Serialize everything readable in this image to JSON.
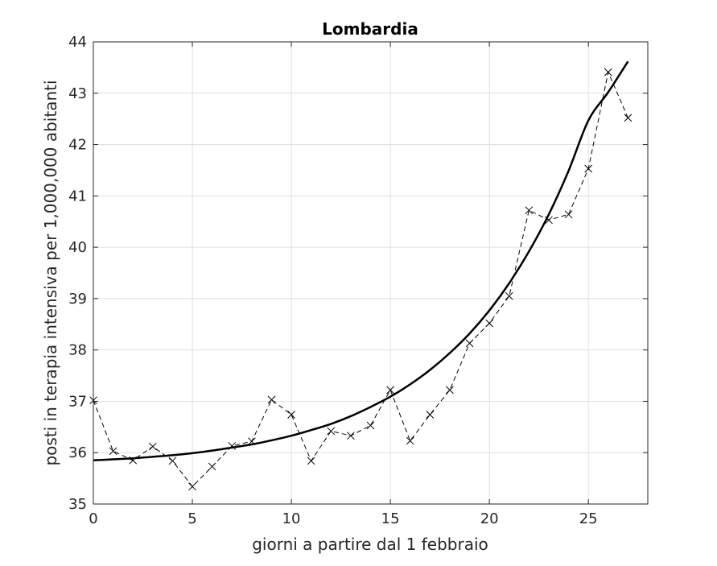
{
  "chart_data": {
    "type": "line",
    "title": "Lombardia",
    "xlabel": "giorni a partire dal 1 febbraio",
    "ylabel": "posti in terapia intensiva per 1,000,000 abitanti",
    "xlim": [
      0,
      28
    ],
    "ylim": [
      35,
      44
    ],
    "xticks": [
      0,
      5,
      10,
      15,
      20,
      25
    ],
    "yticks": [
      35,
      36,
      37,
      38,
      39,
      40,
      41,
      42,
      43,
      44
    ],
    "grid": true,
    "series": [
      {
        "style": "dashed-with-x-markers",
        "color": "#000000",
        "x": [
          0,
          1,
          2,
          3,
          4,
          5,
          6,
          7,
          8,
          9,
          10,
          11,
          12,
          13,
          14,
          15,
          16,
          17,
          18,
          19,
          20,
          21,
          22,
          23,
          24,
          25,
          26,
          27
        ],
        "y": [
          37.02,
          36.03,
          35.85,
          36.12,
          35.84,
          35.34,
          35.73,
          36.13,
          36.22,
          37.03,
          36.74,
          35.84,
          36.42,
          36.33,
          36.53,
          37.22,
          36.23,
          36.74,
          37.22,
          38.13,
          38.52,
          39.05,
          40.72,
          40.53,
          40.64,
          41.53,
          43.41,
          42.52
        ]
      },
      {
        "style": "solid-thick",
        "color": "#000000",
        "x": [
          0,
          1,
          2,
          3,
          4,
          5,
          6,
          7,
          8,
          9,
          10,
          11,
          12,
          13,
          14,
          15,
          16,
          17,
          18,
          19,
          20,
          21,
          22,
          23,
          24,
          25,
          26,
          27
        ],
        "y": [
          35.85,
          35.87,
          35.89,
          35.92,
          35.95,
          35.99,
          36.04,
          36.1,
          36.16,
          36.24,
          36.33,
          36.44,
          36.56,
          36.71,
          36.89,
          37.09,
          37.33,
          37.61,
          37.94,
          38.32,
          38.77,
          39.3,
          39.92,
          40.64,
          41.49,
          42.47,
          43.02,
          43.62
        ]
      }
    ]
  }
}
